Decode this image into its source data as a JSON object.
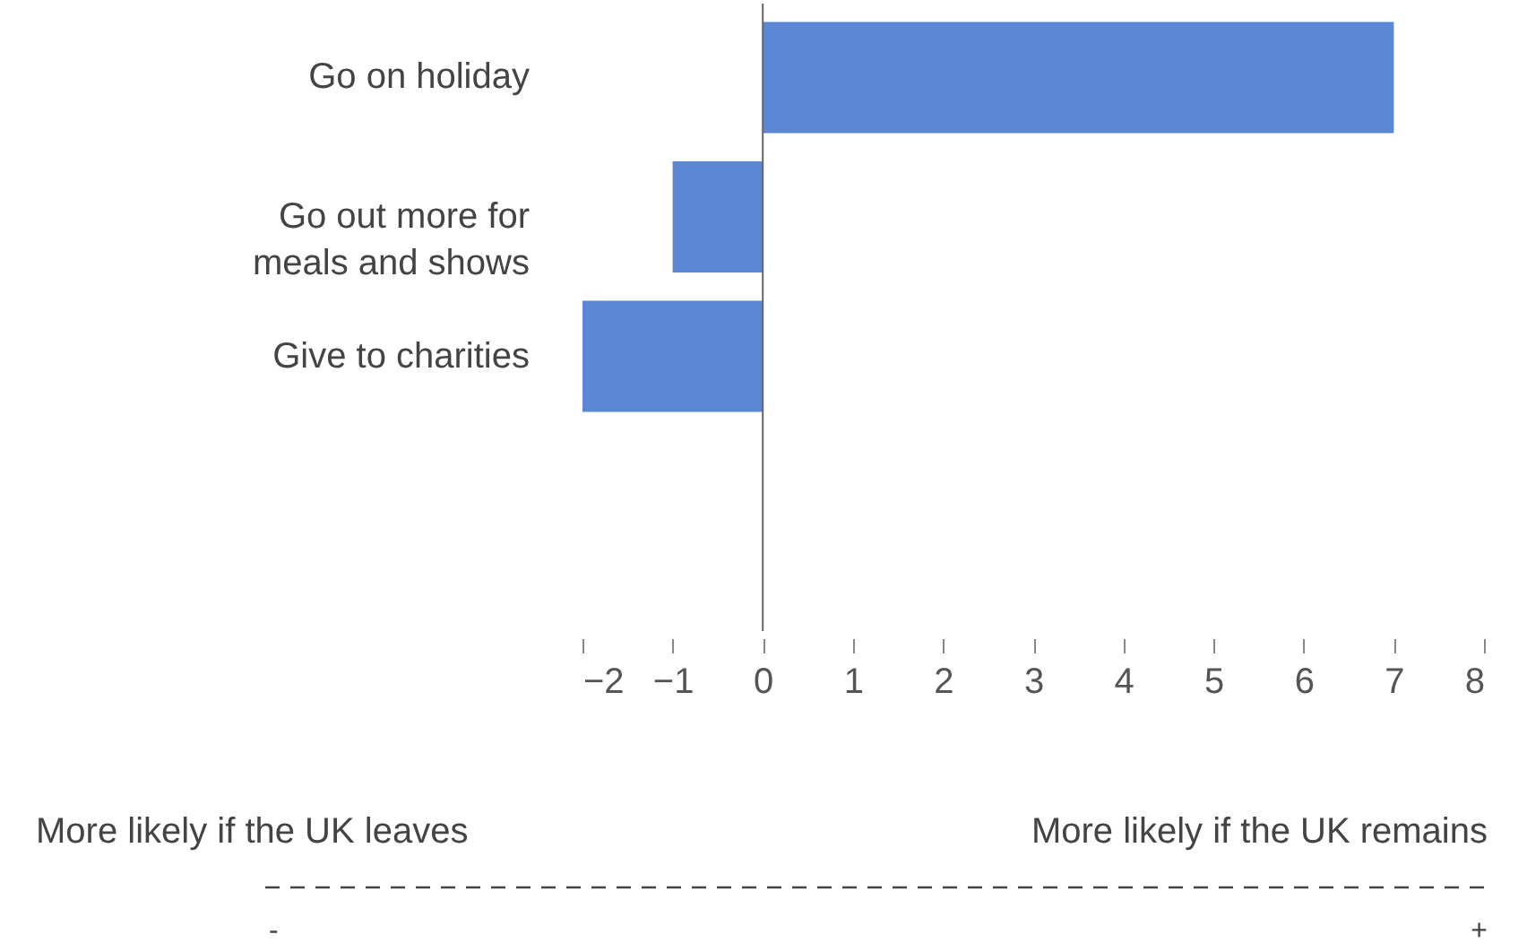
{
  "chart_data": {
    "type": "bar",
    "orientation": "horizontal",
    "categories": [
      "Go on holiday",
      "Go out more for\nmeals and shows",
      "Give to charities"
    ],
    "values": [
      7,
      -1,
      -2
    ],
    "color": "#5b87d4",
    "xlim": [
      -2,
      8
    ],
    "xticks": [
      -2,
      -1,
      0,
      1,
      2,
      3,
      4,
      5,
      6,
      7,
      8
    ],
    "grid": false,
    "ref_lines": [
      {
        "axis": "x",
        "value": 0,
        "color": "#666666"
      }
    ],
    "annotations": [
      "More likely if the UK  leaves",
      "More likely if the UK remains",
      "-",
      "+"
    ]
  }
}
